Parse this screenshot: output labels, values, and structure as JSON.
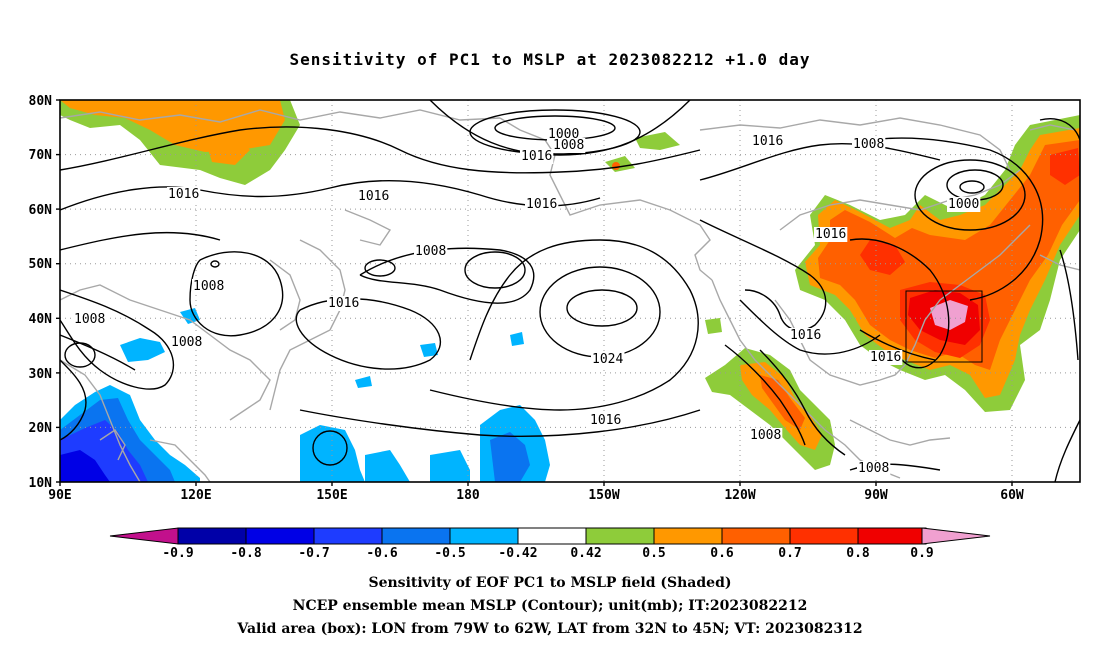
{
  "title": "Sensitivity of PC1 to MSLP at 2023082212 +1.0 day",
  "lat_labels": [
    "80N",
    "70N",
    "60N",
    "50N",
    "40N",
    "30N",
    "20N",
    "10N"
  ],
  "lon_labels": [
    "90E",
    "120E",
    "150E",
    "180",
    "150W",
    "120W",
    "90W",
    "60W"
  ],
  "contour_labels": [
    "1000",
    "1008",
    "1016",
    "1016",
    "1008",
    "1016",
    "1000",
    "1016",
    "1016",
    "1008",
    "1008",
    "1016",
    "1008",
    "1008",
    "1016",
    "1024",
    "1016",
    "1016",
    "1016",
    "1008",
    "1008"
  ],
  "colorbar": {
    "labels": [
      "-0.9",
      "-0.8",
      "-0.7",
      "-0.6",
      "-0.5",
      "-0.42",
      "0.42",
      "0.5",
      "0.6",
      "0.7",
      "0.8",
      "0.9"
    ],
    "colors": [
      "#c2108c",
      "#0000a8",
      "#0000e6",
      "#1e3cff",
      "#0a74f0",
      "#00b4ff",
      "#ffffff",
      "#8ecc3a",
      "#ff9800",
      "#ff6000",
      "#ff3000",
      "#f00000",
      "#f0a0d0"
    ]
  },
  "footer": {
    "line1": "Sensitivity of EOF PC1 to MSLP field (Shaded)",
    "line2": "NCEP ensemble mean MSLP (Contour); unit(mb); IT:2023082212",
    "line3": "Valid area (box): LON from 79W to 62W, LAT from 32N to 45N; VT: 2023082312"
  }
}
